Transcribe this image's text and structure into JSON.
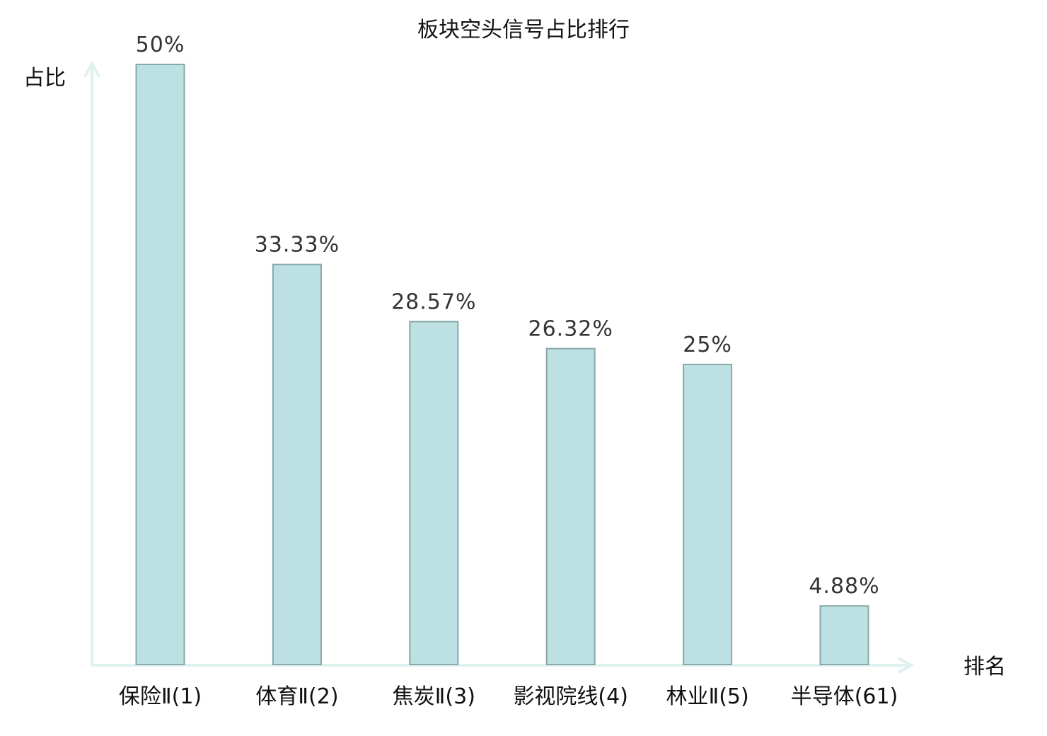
{
  "chart_data": {
    "type": "bar",
    "title": "板块空头信号占比排行",
    "ylabel": "占比",
    "xlabel": "排名",
    "categories": [
      "保险Ⅱ(1)",
      "体育Ⅱ(2)",
      "焦炭Ⅱ(3)",
      "影视院线(4)",
      "林业Ⅱ(5)",
      "半导体(61)"
    ],
    "values": [
      50,
      33.33,
      28.57,
      26.32,
      25,
      4.88
    ],
    "value_labels": [
      "50%",
      "33.33%",
      "28.57%",
      "26.32%",
      "25%",
      "4.88%"
    ],
    "ylim": [
      0,
      50
    ],
    "grid": false,
    "highlight_index": 5,
    "colors": {
      "bar_fill": "#bde0e2",
      "bar_stroke": "#86a8aa",
      "axis": "#dff1ee",
      "highlight_text": "#e02020",
      "text": "#111111",
      "value_text": "#333333"
    }
  }
}
